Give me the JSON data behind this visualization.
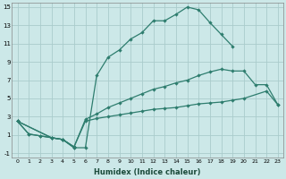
{
  "xlabel": "Humidex (Indice chaleur)",
  "bg_color": "#cce8e8",
  "grid_color": "#aacccc",
  "line_color": "#2e7d6e",
  "xlim": [
    -0.5,
    23.5
  ],
  "ylim": [
    -1.5,
    15.5
  ],
  "xticks": [
    0,
    1,
    2,
    3,
    4,
    5,
    6,
    7,
    8,
    9,
    10,
    11,
    12,
    13,
    14,
    15,
    16,
    17,
    18,
    19,
    20,
    21,
    22,
    23
  ],
  "yticks": [
    -1,
    1,
    3,
    5,
    7,
    9,
    11,
    13,
    15
  ],
  "upper_x": [
    0,
    1,
    2,
    3,
    4,
    5,
    6,
    7,
    8,
    9,
    10,
    11,
    12,
    13,
    14,
    15,
    16,
    17,
    18,
    19
  ],
  "upper_y": [
    2.5,
    1.1,
    0.9,
    0.7,
    0.5,
    -0.4,
    -0.4,
    7.5,
    9.5,
    10.3,
    11.5,
    12.2,
    13.5,
    13.5,
    14.2,
    15.0,
    14.7,
    13.3,
    12.0,
    10.7
  ],
  "mid_x": [
    0,
    3,
    4,
    5,
    6,
    7,
    8,
    9,
    10,
    11,
    12,
    13,
    14,
    15,
    16,
    17,
    18,
    19,
    20,
    21,
    22,
    23
  ],
  "mid_y": [
    2.5,
    0.7,
    0.5,
    -0.3,
    2.7,
    3.3,
    4.0,
    4.5,
    5.0,
    5.5,
    6.0,
    6.3,
    6.7,
    7.0,
    7.5,
    7.9,
    8.2,
    8.0,
    8.0,
    6.5,
    6.5,
    4.3
  ],
  "low_x": [
    0,
    3,
    4,
    5,
    6,
    7,
    8,
    9,
    10,
    11,
    12,
    13,
    14,
    15,
    16,
    17,
    18,
    19,
    20,
    22,
    23
  ],
  "low_y": [
    2.5,
    0.7,
    0.5,
    -0.3,
    2.5,
    2.8,
    3.0,
    3.2,
    3.4,
    3.6,
    3.8,
    3.9,
    4.0,
    4.2,
    4.4,
    4.5,
    4.6,
    4.8,
    5.0,
    5.8,
    4.3
  ],
  "dip_x": [
    0,
    1,
    2,
    3,
    4,
    5
  ],
  "dip_y": [
    2.5,
    1.1,
    0.9,
    0.7,
    0.5,
    -0.4
  ]
}
